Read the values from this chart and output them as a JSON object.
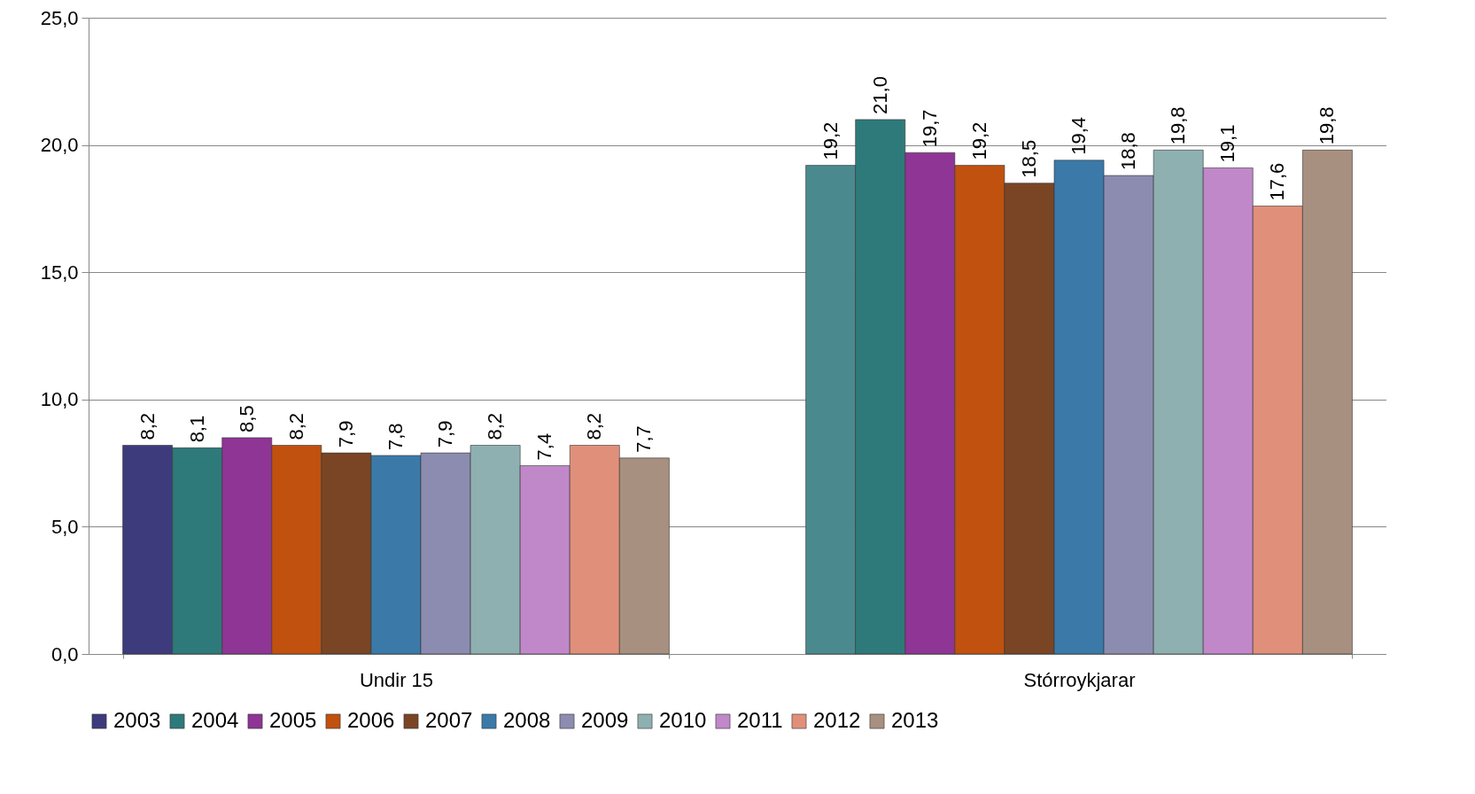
{
  "chart_data": {
    "type": "bar",
    "categories": [
      "Undir 15",
      "Stórroykjarar"
    ],
    "series": [
      {
        "name": "2003",
        "color": "#3d3b7c",
        "colors": [
          "#3d3b7c",
          "#4a8a8f"
        ],
        "values": [
          8.2,
          19.2
        ],
        "value_labels": [
          "8,2",
          "19,2"
        ]
      },
      {
        "name": "2004",
        "color": "#2e7a7a",
        "values": [
          8.1,
          21.0
        ],
        "value_labels": [
          "8,1",
          "21,0"
        ]
      },
      {
        "name": "2005",
        "color": "#8e3595",
        "values": [
          8.5,
          19.7
        ],
        "value_labels": [
          "8,5",
          "19,7"
        ]
      },
      {
        "name": "2006",
        "color": "#c0510f",
        "values": [
          8.2,
          19.2
        ],
        "value_labels": [
          "8,2",
          "19,2"
        ]
      },
      {
        "name": "2007",
        "color": "#7a4524",
        "values": [
          7.9,
          18.5
        ],
        "value_labels": [
          "7,9",
          "18,5"
        ]
      },
      {
        "name": "2008",
        "color": "#3b7aa8",
        "values": [
          7.8,
          19.4
        ],
        "value_labels": [
          "7,8",
          "19,4"
        ]
      },
      {
        "name": "2009",
        "color": "#8c8cb0",
        "values": [
          7.9,
          18.8
        ],
        "value_labels": [
          "7,9",
          "18,8"
        ]
      },
      {
        "name": "2010",
        "color": "#8fb0b0",
        "values": [
          8.2,
          19.8
        ],
        "value_labels": [
          "8,2",
          "19,8"
        ]
      },
      {
        "name": "2011",
        "color": "#c088c8",
        "values": [
          7.4,
          19.1
        ],
        "value_labels": [
          "7,4",
          "19,1"
        ]
      },
      {
        "name": "2012",
        "color": "#e0907a",
        "values": [
          8.2,
          17.6
        ],
        "value_labels": [
          "8,2",
          "17,6"
        ]
      },
      {
        "name": "2013",
        "color": "#a89080",
        "values": [
          7.7,
          19.8
        ],
        "value_labels": [
          "7,7",
          "19,8"
        ]
      }
    ],
    "ylim": [
      0,
      25
    ],
    "yticks": [
      {
        "value": 0,
        "label": "0,0"
      },
      {
        "value": 5,
        "label": "5,0"
      },
      {
        "value": 10,
        "label": "10,0"
      },
      {
        "value": 15,
        "label": "15,0"
      },
      {
        "value": 20,
        "label": "20,0"
      },
      {
        "value": 25,
        "label": "25,0"
      }
    ],
    "grid": "y",
    "legend": "bottom"
  }
}
